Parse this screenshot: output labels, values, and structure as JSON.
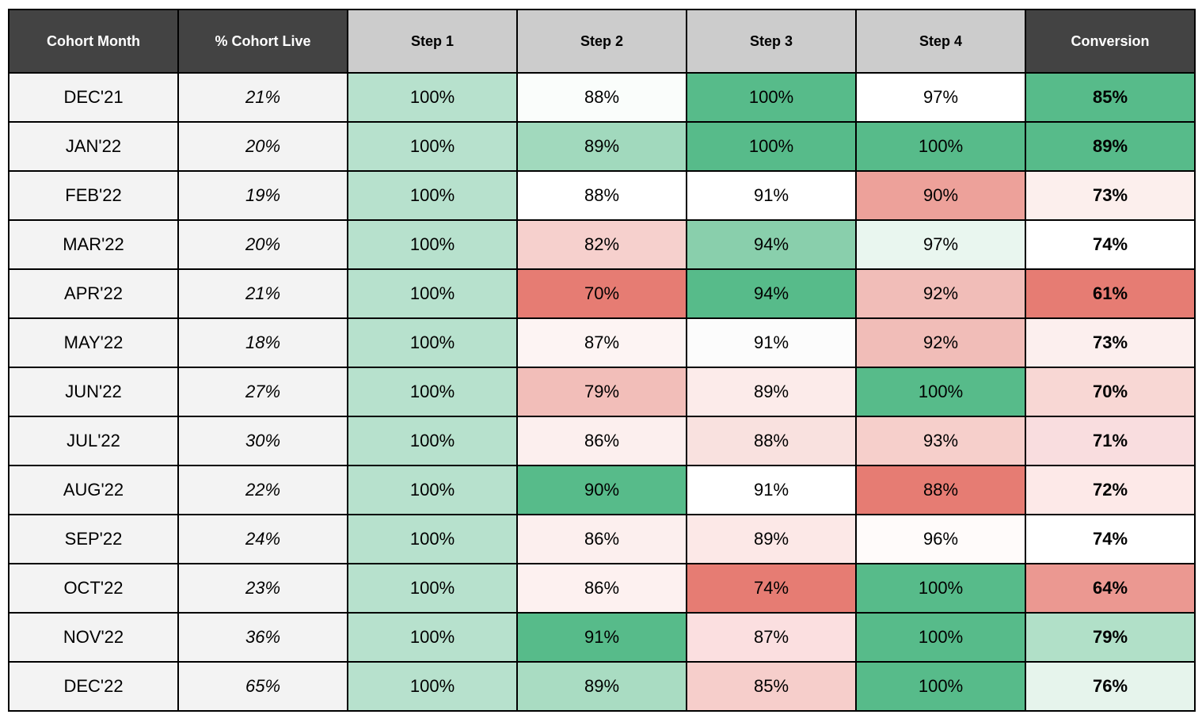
{
  "chart_data": {
    "type": "table",
    "columns": [
      "Cohort Month",
      "% Cohort Live",
      "Step 1",
      "Step 2",
      "Step 3",
      "Step 4",
      "Conversion"
    ],
    "rows": [
      [
        "DEC'21",
        "21%",
        "100%",
        "88%",
        "100%",
        "97%",
        "85%"
      ],
      [
        "JAN'22",
        "20%",
        "100%",
        "89%",
        "100%",
        "100%",
        "89%"
      ],
      [
        "FEB'22",
        "19%",
        "100%",
        "88%",
        "91%",
        "90%",
        "73%"
      ],
      [
        "MAR'22",
        "20%",
        "100%",
        "82%",
        "94%",
        "97%",
        "74%"
      ],
      [
        "APR'22",
        "21%",
        "100%",
        "70%",
        "94%",
        "92%",
        "61%"
      ],
      [
        "MAY'22",
        "18%",
        "100%",
        "87%",
        "91%",
        "92%",
        "73%"
      ],
      [
        "JUN'22",
        "27%",
        "100%",
        "79%",
        "89%",
        "100%",
        "70%"
      ],
      [
        "JUL'22",
        "30%",
        "100%",
        "86%",
        "88%",
        "93%",
        "71%"
      ],
      [
        "AUG'22",
        "22%",
        "100%",
        "90%",
        "91%",
        "88%",
        "72%"
      ],
      [
        "SEP'22",
        "24%",
        "100%",
        "86%",
        "89%",
        "96%",
        "74%"
      ],
      [
        "OCT'22",
        "23%",
        "100%",
        "86%",
        "74%",
        "100%",
        "64%"
      ],
      [
        "NOV'22",
        "36%",
        "100%",
        "91%",
        "87%",
        "100%",
        "79%"
      ],
      [
        "DEC'22",
        "65%",
        "100%",
        "89%",
        "85%",
        "100%",
        "76%"
      ]
    ],
    "cell_colors": [
      [
        "#f3f3f3",
        "#f3f3f3",
        "#b7e1cd",
        "#fafdfb",
        "#57bb8a",
        "#ffffff",
        "#57bb8a"
      ],
      [
        "#f3f3f3",
        "#f3f3f3",
        "#b7e1cd",
        "#a1d9bd",
        "#57bb8a",
        "#57bb8a",
        "#57bb8a"
      ],
      [
        "#f3f3f3",
        "#f3f3f3",
        "#b7e1cd",
        "#ffffff",
        "#ffffff",
        "#eda19a",
        "#fcefed"
      ],
      [
        "#f3f3f3",
        "#f3f3f3",
        "#b7e1cd",
        "#f6d0cd",
        "#89cfac",
        "#e9f6ef",
        "#ffffff"
      ],
      [
        "#f3f3f3",
        "#f3f3f3",
        "#b7e1cd",
        "#e67c73",
        "#57bb8a",
        "#f1bdb8",
        "#e67c73"
      ],
      [
        "#f3f3f3",
        "#f3f3f3",
        "#b7e1cd",
        "#fdf4f3",
        "#fcfcfc",
        "#f1bdb8",
        "#fcefee"
      ],
      [
        "#f3f3f3",
        "#f3f3f3",
        "#b7e1cd",
        "#f2beb9",
        "#fcebea",
        "#57bb8a",
        "#f8d7d4"
      ],
      [
        "#f3f3f3",
        "#f3f3f3",
        "#b7e1cd",
        "#fcefee",
        "#f9e1df",
        "#f6cfcb",
        "#f9dddf"
      ],
      [
        "#f3f3f3",
        "#f3f3f3",
        "#b7e1cd",
        "#57bb8a",
        "#ffffff",
        "#e67c73",
        "#fde9e8"
      ],
      [
        "#f3f3f3",
        "#f3f3f3",
        "#b7e1cd",
        "#fcefee",
        "#fce8e7",
        "#fffbfa",
        "#ffffff"
      ],
      [
        "#f3f3f3",
        "#f3f3f3",
        "#b7e1cd",
        "#fdf1f0",
        "#e67c73",
        "#57bb8a",
        "#eb9891"
      ],
      [
        "#f3f3f3",
        "#f3f3f3",
        "#b7e1cd",
        "#57bb8a",
        "#fbdfe0",
        "#57bb8a",
        "#b1e0c8"
      ],
      [
        "#f3f3f3",
        "#f3f3f3",
        "#b7e1cd",
        "#a9dcc2",
        "#f6cecb",
        "#57bb8a",
        "#e6f4ec"
      ]
    ],
    "header_colors": {
      "dark_bg": "#434343",
      "dark_text": "#ffffff",
      "light_bg": "#cccccc",
      "light_text": "#000000"
    },
    "dark_header_columns": [
      0,
      1,
      6
    ],
    "border_color": "#000000"
  }
}
